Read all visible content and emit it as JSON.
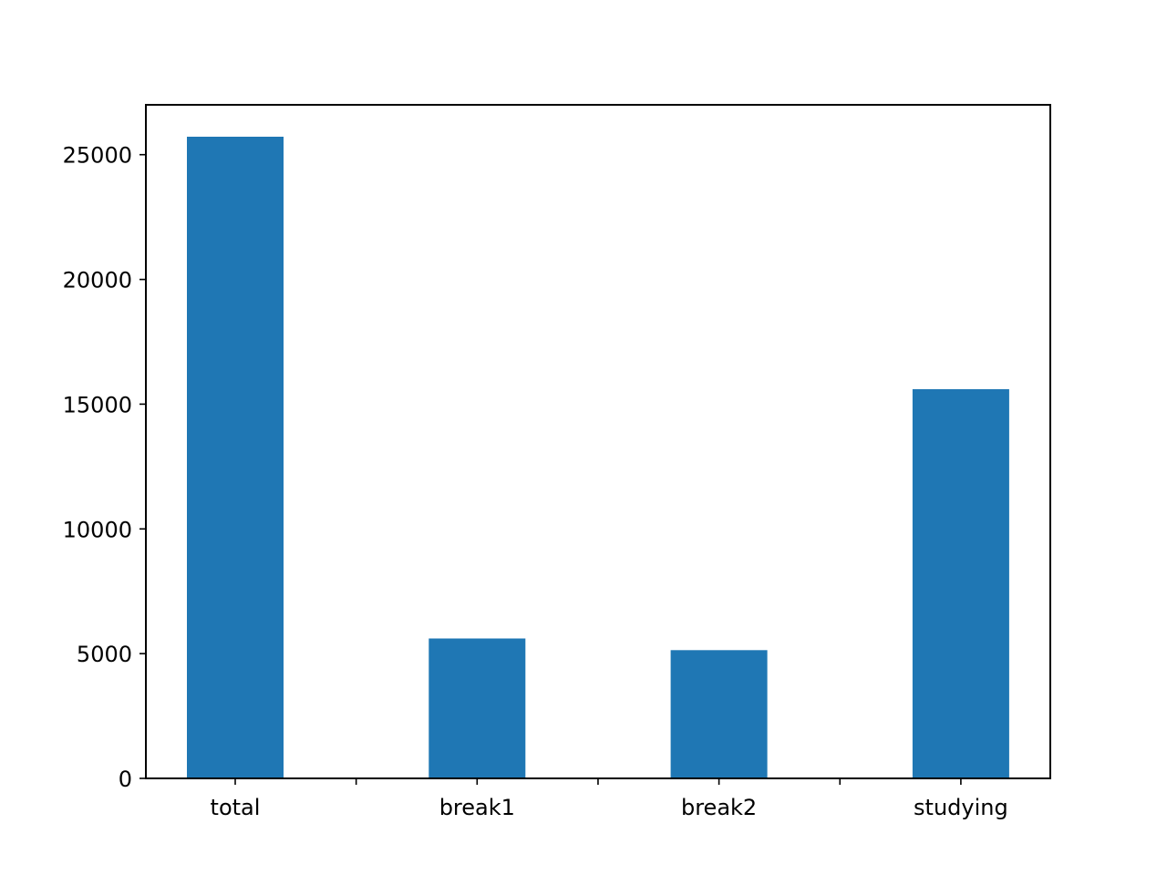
{
  "chart_data": {
    "type": "bar",
    "title": "",
    "xlabel": "",
    "ylabel": "",
    "categories": [
      "total",
      "break1",
      "break2",
      "studying"
    ],
    "values": [
      25720,
      5610,
      5140,
      15600
    ],
    "ylim": [
      0,
      27000
    ],
    "yticks": [
      0,
      5000,
      10000,
      15000,
      20000,
      25000
    ],
    "ytick_labels": [
      "0",
      "5000",
      "10000",
      "15000",
      "20000",
      "25000"
    ],
    "grid": false,
    "legend": "none",
    "bar_color": "#1f77b4"
  }
}
